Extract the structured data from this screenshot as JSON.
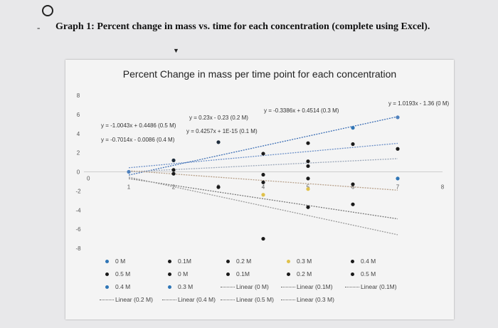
{
  "question": {
    "dash": "-",
    "text": "Graph 1: Percent change in mass vs. time for each concentration (complete using Excel)."
  },
  "chart_data": {
    "type": "scatter",
    "title": "Percent Change in mass per time point for each concentration",
    "xlabel": "",
    "ylabel": "",
    "xlim": [
      0,
      8
    ],
    "ylim": [
      -8,
      8
    ],
    "x_ticks": [
      "1",
      "2",
      "3",
      "4",
      "5",
      "6",
      "7",
      "8"
    ],
    "y_ticks": [
      "8",
      "6",
      "4",
      "2",
      "0",
      "-2",
      "-4",
      "-6",
      "-8"
    ],
    "x_origin_label": "0",
    "grid": false,
    "series": [
      {
        "name": "0 M",
        "color": "#4f81bd",
        "points": [
          [
            1,
            0
          ],
          [
            7,
            5.7
          ]
        ]
      },
      {
        "name": "0.1M",
        "color": "#1f2d3d",
        "points": [
          [
            2,
            1.2
          ],
          [
            3,
            3.1
          ]
        ]
      },
      {
        "name": "0.2 M",
        "color": "#1a1a1a",
        "points": [
          [
            4,
            -7.0
          ],
          [
            5,
            -3.7
          ]
        ]
      },
      {
        "name": "0.3 M",
        "color": "#e0c14a",
        "points": [
          [
            4,
            -2.4
          ],
          [
            5,
            -1.8
          ]
        ]
      },
      {
        "name": "0.4 M",
        "color": "#2e75b6",
        "points": [
          [
            6,
            4.6
          ],
          [
            7,
            -0.7
          ]
        ]
      },
      {
        "name": "0.5 M",
        "color": "#1a1a1a",
        "points": [
          [
            5,
            3.0
          ],
          [
            6,
            -1.3
          ]
        ]
      },
      {
        "name": "0 M",
        "color": "#1a1a1a",
        "points": [
          [
            2,
            0.2
          ],
          [
            5,
            0.6
          ]
        ]
      },
      {
        "name": "0.1M",
        "color": "#1a1a1a",
        "points": [
          [
            4,
            -1.1
          ],
          [
            6,
            2.9
          ]
        ]
      },
      {
        "name": "0.2 M",
        "color": "#1a1a1a",
        "points": [
          [
            3,
            -1.6
          ],
          [
            6,
            -3.4
          ]
        ]
      },
      {
        "name": "0.4 M",
        "color": "#1a1a1a",
        "points": [
          [
            7,
            2.4
          ],
          [
            4,
            -0.3
          ]
        ]
      },
      {
        "name": "0.5 M",
        "color": "#1a1a1a",
        "points": [
          [
            2,
            -0.2
          ],
          [
            5,
            -0.7
          ]
        ]
      },
      {
        "name": "0.3 M",
        "color": "#1a1a1a",
        "points": [
          [
            4,
            1.9
          ],
          [
            5,
            1.1
          ]
        ]
      }
    ],
    "trendlines": [
      {
        "name": "Linear (0 M)",
        "label": "y = 1.0193x - 1.36 (0 M)",
        "slope": 1.0193,
        "intercept": -1.36
      },
      {
        "name": "Linear (0.1M)",
        "label": "y = 0.4257x + 1E-15 (0.1 M)",
        "slope": 0.4257,
        "intercept": 0
      },
      {
        "name": "Linear (0.2 M)",
        "label": "y = 0.23x - 0.23 (0.2 M)",
        "slope": 0.23,
        "intercept": -0.23
      },
      {
        "name": "Linear (0.3 M)",
        "label": "y = -0.3386x + 0.4514 (0.3 M)",
        "slope": -0.3386,
        "intercept": 0.4514
      },
      {
        "name": "Linear (0.4 M)",
        "label": "y = -0.7014x - 0.0086 (0.4 M)",
        "slope": -0.7014,
        "intercept": -0.0086
      },
      {
        "name": "Linear (0.5 M)",
        "label": "y = -1.0043x + 0.4486 (0.5 M)",
        "slope": -1.0043,
        "intercept": 0.4486
      }
    ],
    "legend_position": "bottom",
    "legend": [
      {
        "label": "0 M",
        "type": "dot",
        "color": "#2e75b6"
      },
      {
        "label": "0.1M",
        "type": "dot",
        "color": "#1a1a1a"
      },
      {
        "label": "0.2 M",
        "type": "dot",
        "color": "#1a1a1a"
      },
      {
        "label": "0.3 M",
        "type": "dot",
        "color": "#e0c14a"
      },
      {
        "label": "0.4 M",
        "type": "dot",
        "color": "#2e75b6"
      },
      {
        "label": "0.5 M",
        "type": "dot",
        "color": "#1a1a1a"
      },
      {
        "label": "0 M",
        "type": "dot",
        "color": "#1a1a1a"
      },
      {
        "label": "0.1M",
        "type": "dot",
        "color": "#1a1a1a"
      },
      {
        "label": "0.2 M",
        "type": "dot",
        "color": "#1a1a1a"
      },
      {
        "label": "0.3 M",
        "type": "dot",
        "color": "#2e75b6"
      },
      {
        "label": "0.4 M",
        "type": "dot",
        "color": "#1a1a1a"
      },
      {
        "label": "0.5 M",
        "type": "dot",
        "color": "#1a1a1a"
      },
      {
        "label": "Linear (0 M)",
        "type": "line",
        "color": "#666666"
      },
      {
        "label": "Linear (0.1M)",
        "type": "line",
        "color": "#666666"
      },
      {
        "label": "Linear (0.1M)",
        "type": "line",
        "color": "#666666"
      },
      {
        "label": "Linear (0.2 M)",
        "type": "line",
        "color": "#666666"
      },
      {
        "label": "Linear (0.3 M)",
        "type": "line",
        "color": "#666666"
      },
      {
        "label": "Linear (0.4 M)",
        "type": "line",
        "color": "#666666"
      },
      {
        "label": "Linear (0.5 M)",
        "type": "line",
        "color": "#666666"
      }
    ]
  }
}
